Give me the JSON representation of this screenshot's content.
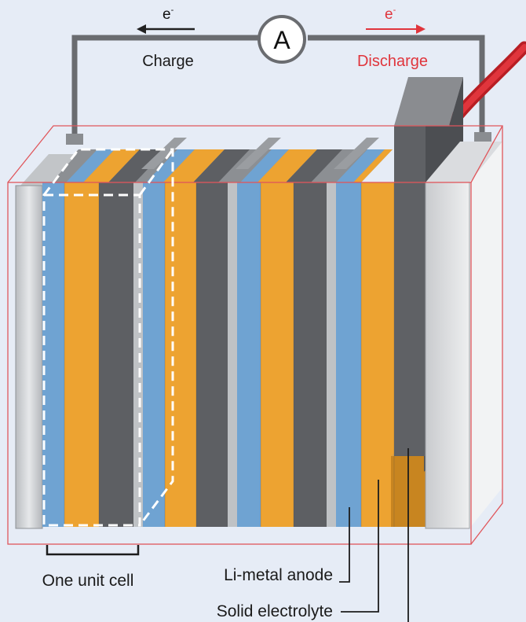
{
  "circuit": {
    "meter_symbol": "A",
    "charge_electron": "e",
    "charge_label": "Charge",
    "discharge_electron": "e",
    "discharge_label": "Discharge"
  },
  "callouts": {
    "unit_cell": "One unit cell",
    "anode": "Li-metal anode",
    "electrolyte": "Solid electrolyte"
  },
  "colors": {
    "background": "#e6ecf6",
    "cathode_blue": "#6fa3d2",
    "electrolyte_orange": "#eda331",
    "anode_gray": "#5d5f63",
    "current_collector": "#d5d7da",
    "casing_outline": "#e0565b",
    "discharge_accent": "#e0353c"
  }
}
